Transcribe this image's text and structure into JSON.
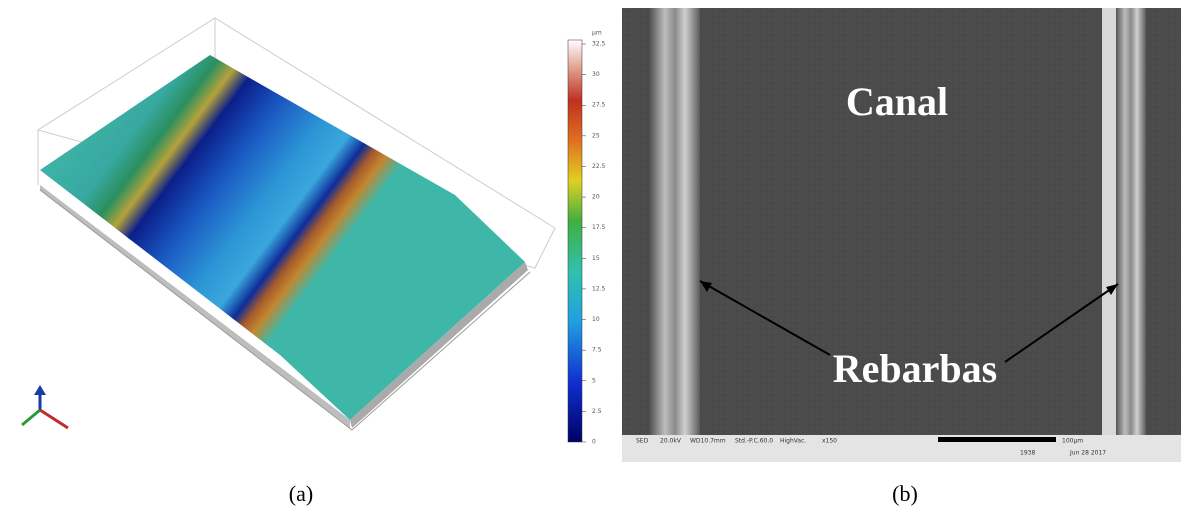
{
  "panel_a": {
    "label": "(a)",
    "colorbar": {
      "unit": "µm",
      "ticks": [
        32.5,
        30,
        27.5,
        25,
        22.5,
        20,
        17.5,
        15,
        12.5,
        10,
        7.5,
        5,
        2.5,
        0
      ]
    }
  },
  "panel_b": {
    "label": "(b)",
    "title": "Canal",
    "annotation": "Rebarbas",
    "info_bar": [
      "SED",
      "20.0kV",
      "WD10.7mm",
      "Std.-P.C.60.0",
      "HighVac.",
      "x150",
      "100µm",
      "1938",
      "Jun 28 2017"
    ]
  }
}
